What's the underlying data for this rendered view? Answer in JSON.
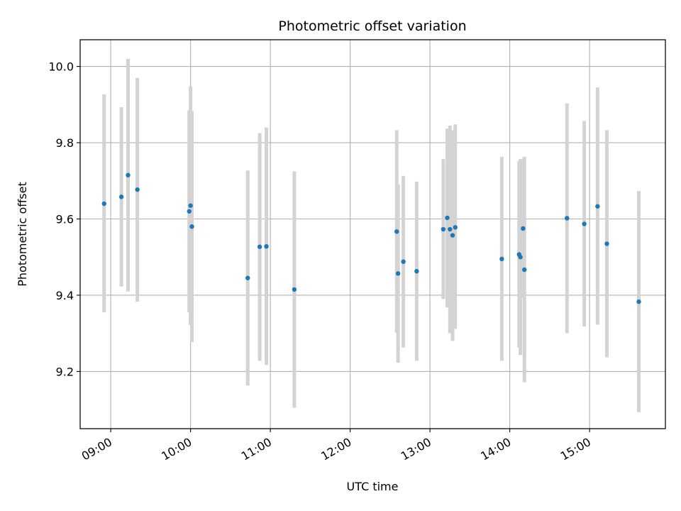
{
  "chart_data": {
    "type": "scatter",
    "title": "Photometric offset variation",
    "xlabel": "UTC time",
    "ylabel": "Photometric offset",
    "x_ticks": [
      "09:00",
      "10:00",
      "11:00",
      "12:00",
      "13:00",
      "14:00",
      "15:00"
    ],
    "y_ticks": [
      "9.2",
      "9.4",
      "9.6",
      "9.8",
      "10.0"
    ],
    "xlim": [
      "08:37",
      "15:57"
    ],
    "ylim": [
      9.05,
      10.07
    ],
    "grid": true,
    "colors": {
      "point": "#1f77b4",
      "errorbar": "#d3d3d3",
      "grid": "#b0b0b0"
    },
    "points": [
      {
        "time": "08:55",
        "y": 9.64,
        "ylo": 9.355,
        "yhi": 9.927
      },
      {
        "time": "09:08",
        "y": 9.658,
        "ylo": 9.423,
        "yhi": 9.893
      },
      {
        "time": "09:13",
        "y": 9.715,
        "ylo": 9.41,
        "yhi": 10.02
      },
      {
        "time": "09:20",
        "y": 9.677,
        "ylo": 9.383,
        "yhi": 9.97
      },
      {
        "time": "09:59",
        "y": 9.62,
        "ylo": 9.355,
        "yhi": 9.885
      },
      {
        "time": "10:00",
        "y": 9.635,
        "ylo": 9.322,
        "yhi": 9.948
      },
      {
        "time": "10:01",
        "y": 9.58,
        "ylo": 9.277,
        "yhi": 9.883
      },
      {
        "time": "10:43",
        "y": 9.445,
        "ylo": 9.163,
        "yhi": 9.727
      },
      {
        "time": "10:52",
        "y": 9.527,
        "ylo": 9.228,
        "yhi": 9.825
      },
      {
        "time": "10:57",
        "y": 9.528,
        "ylo": 9.217,
        "yhi": 9.84
      },
      {
        "time": "11:18",
        "y": 9.415,
        "ylo": 9.105,
        "yhi": 9.725
      },
      {
        "time": "12:35",
        "y": 9.567,
        "ylo": 9.302,
        "yhi": 9.833
      },
      {
        "time": "12:36",
        "y": 9.457,
        "ylo": 9.223,
        "yhi": 9.69
      },
      {
        "time": "12:40",
        "y": 9.488,
        "ylo": 9.263,
        "yhi": 9.713
      },
      {
        "time": "12:50",
        "y": 9.463,
        "ylo": 9.228,
        "yhi": 9.698
      },
      {
        "time": "13:10",
        "y": 9.573,
        "ylo": 9.39,
        "yhi": 9.757
      },
      {
        "time": "13:13",
        "y": 9.603,
        "ylo": 9.368,
        "yhi": 9.837
      },
      {
        "time": "13:15",
        "y": 9.573,
        "ylo": 9.3,
        "yhi": 9.845
      },
      {
        "time": "13:17",
        "y": 9.557,
        "ylo": 9.28,
        "yhi": 9.833
      },
      {
        "time": "13:19",
        "y": 9.578,
        "ylo": 9.312,
        "yhi": 9.848
      },
      {
        "time": "13:54",
        "y": 9.495,
        "ylo": 9.228,
        "yhi": 9.763
      },
      {
        "time": "14:07",
        "y": 9.507,
        "ylo": 9.263,
        "yhi": 9.752
      },
      {
        "time": "14:08",
        "y": 9.5,
        "ylo": 9.243,
        "yhi": 9.757
      },
      {
        "time": "14:10",
        "y": 9.575,
        "ylo": 9.392,
        "yhi": 9.758
      },
      {
        "time": "14:11",
        "y": 9.467,
        "ylo": 9.172,
        "yhi": 9.763
      },
      {
        "time": "14:43",
        "y": 9.602,
        "ylo": 9.3,
        "yhi": 9.903
      },
      {
        "time": "14:56",
        "y": 9.587,
        "ylo": 9.318,
        "yhi": 9.857
      },
      {
        "time": "15:06",
        "y": 9.633,
        "ylo": 9.323,
        "yhi": 9.945
      },
      {
        "time": "15:13",
        "y": 9.535,
        "ylo": 9.237,
        "yhi": 9.833
      },
      {
        "time": "15:37",
        "y": 9.383,
        "ylo": 9.093,
        "yhi": 9.673
      }
    ]
  }
}
